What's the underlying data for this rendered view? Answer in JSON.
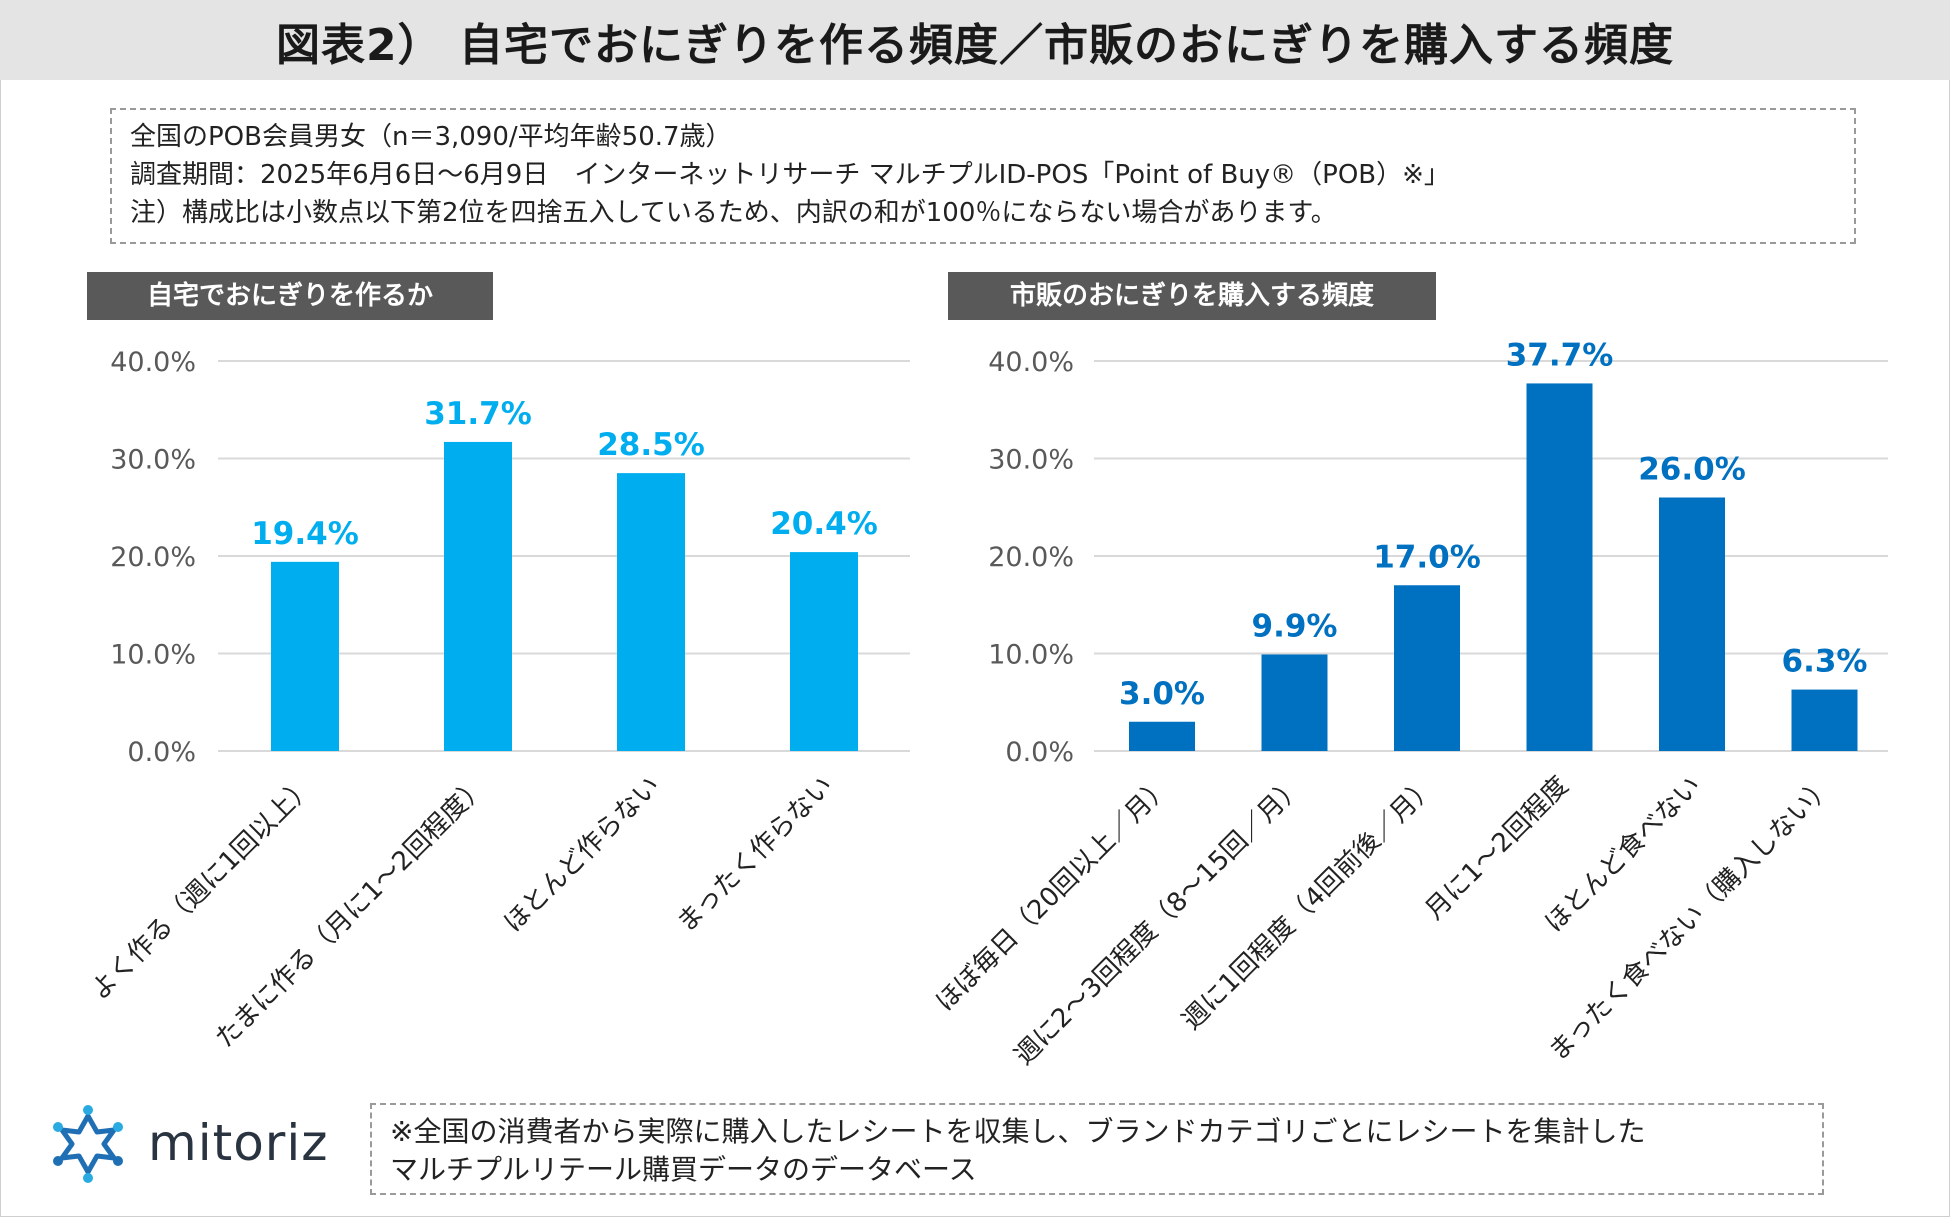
{
  "title": "図表2） 自宅でおにぎりを作る頻度／市販のおにぎりを購入する頻度",
  "notes": [
    "全国のPOB会員男女（n＝3,090/平均年齢50.7歳）",
    "調査期間：2025年6月6日〜6月9日　インターネットリサーチ マルチプルID-POS「Point of Buy®（POB）※」",
    "注）構成比は小数点以下第2位を四捨五入しているため、内訳の和が100％にならない場合があります。"
  ],
  "footer_note": [
    "※全国の消費者から実際に購入したレシートを収集し、ブランドカテゴリごとにレシートを集計した",
    "マルチプルリテール購買データのデータベース"
  ],
  "logo_text": "mitoriz",
  "colors": {
    "left_bar": "#00aeef",
    "right_bar": "#0070c0",
    "left_label": "#00aeef",
    "right_label": "#0070c0",
    "gridline": "#d9d9d9",
    "axis_text": "#595959"
  },
  "chart_data": [
    {
      "type": "bar",
      "title": "自宅でおにぎりを作るか",
      "categories": [
        "よく作る（週に1回以上）",
        "たまに作る（月に1〜2回程度）",
        "ほとんど作らない",
        "まったく作らない"
      ],
      "values": [
        19.4,
        31.7,
        28.5,
        20.4
      ],
      "value_labels": [
        "19.4%",
        "31.7%",
        "28.5%",
        "20.4%"
      ],
      "yticks": [
        "0.0%",
        "10.0%",
        "20.0%",
        "30.0%",
        "40.0%"
      ],
      "ylim": [
        0,
        40
      ],
      "grid": true
    },
    {
      "type": "bar",
      "title": "市販のおにぎりを購入する頻度",
      "categories": [
        "ほぼ毎日（20回以上／月）",
        "週に2〜3回程度（8〜15回／月）",
        "週に1回程度（4回前後／月）",
        "月に1〜2回程度",
        "ほとんど食べない",
        "まったく食べない（購入しない）"
      ],
      "values": [
        3.0,
        9.9,
        17.0,
        37.7,
        26.0,
        6.3
      ],
      "value_labels": [
        "3.0%",
        "9.9%",
        "17.0%",
        "37.7%",
        "26.0%",
        "6.3%"
      ],
      "yticks": [
        "0.0%",
        "10.0%",
        "20.0%",
        "30.0%",
        "40.0%"
      ],
      "ylim": [
        0,
        40
      ],
      "grid": true
    }
  ]
}
